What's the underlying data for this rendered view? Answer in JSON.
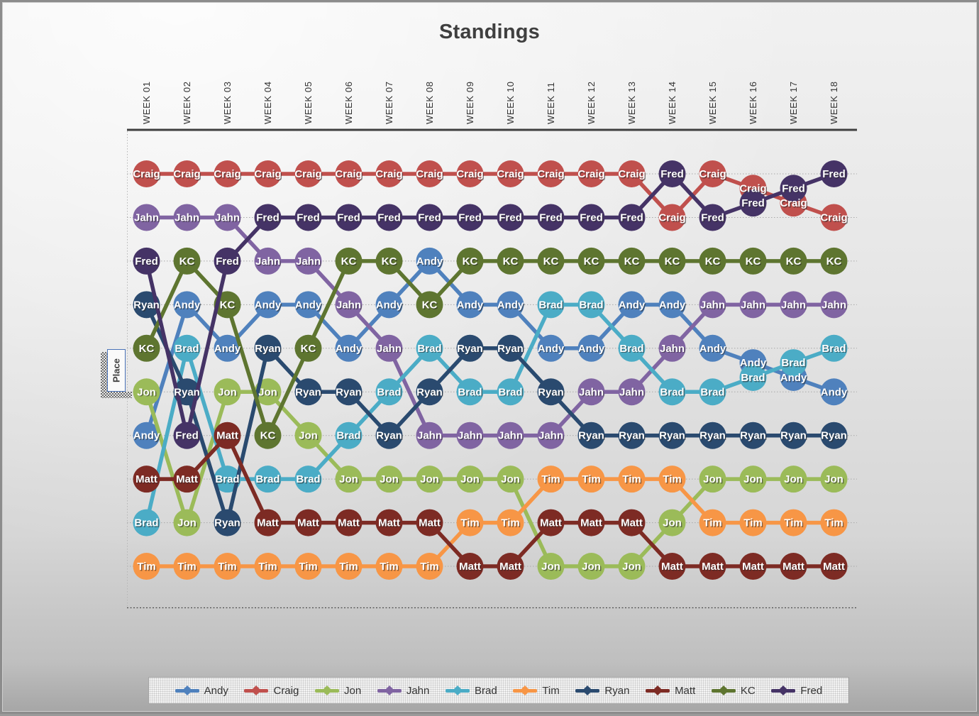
{
  "title": "Standings",
  "ylabel": "Place",
  "chart_data": {
    "type": "line",
    "subtype": "bump-chart (rank over time, 1 = top)",
    "x_labels": [
      "WEEK 01",
      "WEEK 02",
      "WEEK 03",
      "WEEK 04",
      "WEEK 05",
      "WEEK 06",
      "WEEK 07",
      "WEEK 08",
      "WEEK 09",
      "WEEK 10",
      "WEEK 11",
      "WEEK 12",
      "WEEK 13",
      "WEEK 14",
      "WEEK 15",
      "WEEK 16",
      "WEEK 17",
      "WEEK 18"
    ],
    "y_axis": {
      "label": "Place",
      "min": 1,
      "max": 10,
      "inverted": true,
      "gridlines": "dotted"
    },
    "legend_position": "bottom",
    "note": "fractional places at weeks 16-17 represent visual ties drawn as overlapping markers",
    "series": [
      {
        "name": "Andy",
        "color": "#4F81BD",
        "places": [
          7,
          4,
          5,
          4,
          4,
          5,
          4,
          3,
          4,
          4,
          5,
          5,
          4,
          4,
          5,
          5.33,
          5.67,
          6
        ]
      },
      {
        "name": "Craig",
        "color": "#C0504D",
        "places": [
          1,
          1,
          1,
          1,
          1,
          1,
          1,
          1,
          1,
          1,
          1,
          1,
          1,
          2,
          1,
          1.33,
          1.67,
          2
        ]
      },
      {
        "name": "Jon",
        "color": "#9BBB59",
        "places": [
          6,
          9,
          6,
          6,
          7,
          8,
          8,
          8,
          8,
          8,
          10,
          10,
          10,
          9,
          8,
          8,
          8,
          8
        ]
      },
      {
        "name": "Jahn",
        "color": "#8064A2",
        "places": [
          2,
          2,
          2,
          3,
          3,
          4,
          5,
          7,
          7,
          7,
          7,
          6,
          6,
          5,
          4,
          4,
          4,
          4
        ]
      },
      {
        "name": "Brad",
        "color": "#4BACC6",
        "places": [
          9,
          5,
          8,
          8,
          8,
          7,
          6,
          5,
          6,
          6,
          4,
          4,
          5,
          6,
          6,
          5.67,
          5.33,
          5
        ]
      },
      {
        "name": "Tim",
        "color": "#F79646",
        "places": [
          10,
          10,
          10,
          10,
          10,
          10,
          10,
          10,
          9,
          9,
          8,
          8,
          8,
          8,
          9,
          9,
          9,
          9
        ]
      },
      {
        "name": "Ryan",
        "color": "#2A4A6F",
        "places": [
          4,
          6,
          9,
          5,
          6,
          6,
          7,
          6,
          5,
          5,
          6,
          7,
          7,
          7,
          7,
          7,
          7,
          7
        ]
      },
      {
        "name": "Matt",
        "color": "#7D2B24",
        "places": [
          8,
          8,
          7,
          9,
          9,
          9,
          9,
          9,
          10,
          10,
          9,
          9,
          9,
          10,
          10,
          10,
          10,
          10
        ]
      },
      {
        "name": "KC",
        "color": "#5E7530",
        "places": [
          5,
          3,
          4,
          7,
          5,
          3,
          3,
          4,
          3,
          3,
          3,
          3,
          3,
          3,
          3,
          3,
          3,
          3
        ]
      },
      {
        "name": "Fred",
        "color": "#453366",
        "places": [
          3,
          7,
          3,
          2,
          2,
          2,
          2,
          2,
          2,
          2,
          2,
          2,
          2,
          1,
          2,
          1.67,
          1.33,
          1
        ]
      }
    ]
  }
}
